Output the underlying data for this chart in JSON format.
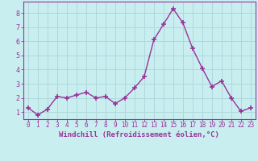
{
  "x": [
    0,
    1,
    2,
    3,
    4,
    5,
    6,
    7,
    8,
    9,
    10,
    11,
    12,
    13,
    14,
    15,
    16,
    17,
    18,
    19,
    20,
    21,
    22,
    23
  ],
  "y": [
    1.3,
    0.8,
    1.2,
    2.1,
    2.0,
    2.2,
    2.4,
    2.0,
    2.1,
    1.6,
    2.0,
    2.7,
    3.5,
    6.1,
    7.2,
    8.3,
    7.3,
    5.5,
    4.1,
    2.8,
    3.2,
    2.0,
    1.05,
    1.3
  ],
  "line_color": "#993399",
  "marker": "+",
  "marker_size": 5,
  "linewidth": 1.0,
  "bg_color": "#c8eef0",
  "grid_color": "#b0d8dc",
  "xlabel": "Windchill (Refroidissement éolien,°C)",
  "xlabel_color": "#993399",
  "tick_color": "#993399",
  "ylim": [
    0.5,
    8.8
  ],
  "xlim": [
    -0.5,
    23.5
  ],
  "yticks": [
    1,
    2,
    3,
    4,
    5,
    6,
    7,
    8
  ],
  "xticks": [
    0,
    1,
    2,
    3,
    4,
    5,
    6,
    7,
    8,
    9,
    10,
    11,
    12,
    13,
    14,
    15,
    16,
    17,
    18,
    19,
    20,
    21,
    22,
    23
  ],
  "xtick_labels": [
    "0",
    "1",
    "2",
    "3",
    "4",
    "5",
    "6",
    "7",
    "8",
    "9",
    "10",
    "11",
    "12",
    "13",
    "14",
    "15",
    "16",
    "17",
    "18",
    "19",
    "20",
    "21",
    "22",
    "23"
  ],
  "spine_color": "#993399",
  "tick_fontsize": 5.5,
  "xlabel_fontsize": 6.5,
  "xlabel_fontweight": "bold"
}
